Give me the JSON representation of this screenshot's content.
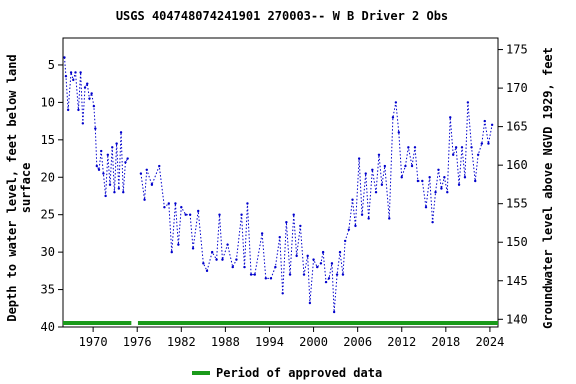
{
  "chart_data": {
    "type": "line",
    "title": "USGS 404748074241901 270003-- W B Driver 2 Obs",
    "ylabel": [
      "Depth to water level, feet below land",
      "surface"
    ],
    "y2label": "Groundwater level above NGVD 1929, feet",
    "xlim": [
      1965.9,
      2025.1
    ],
    "xticks": [
      1970,
      1976,
      1982,
      1988,
      1994,
      2000,
      2006,
      2012,
      2018,
      2024
    ],
    "ylim": [
      40,
      1.4
    ],
    "yticks": [
      5,
      10,
      15,
      20,
      25,
      30,
      35,
      40
    ],
    "y2lim": [
      139,
      176.5
    ],
    "y2ticks": [
      140,
      145,
      150,
      155,
      160,
      165,
      170,
      175
    ],
    "x": [
      1966.1,
      1966.3,
      1966.6,
      1967,
      1967.3,
      1967.6,
      1968,
      1968.3,
      1968.6,
      1968.9,
      1969.2,
      1969.5,
      1969.8,
      1970.1,
      1970.3,
      1970.5,
      1970.8,
      1971.1,
      1971.4,
      1971.7,
      1972,
      1972.3,
      1972.6,
      1972.9,
      1973.2,
      1973.5,
      1973.8,
      1974.1,
      1974.4,
      1974.7,
      1975.5,
      1976.5,
      1977,
      1977.3,
      1978,
      1979,
      1979.7,
      1980.3,
      1980.7,
      1981.2,
      1981.6,
      1982,
      1982.6,
      1983.2,
      1983.6,
      1984.3,
      1985,
      1985.5,
      1986.2,
      1986.8,
      1987.2,
      1987.6,
      1988.3,
      1989,
      1989.5,
      1990.2,
      1990.6,
      1991,
      1991.5,
      1992,
      1993,
      1993.5,
      1994.2,
      1994.8,
      1995.4,
      1995.8,
      1996.3,
      1996.8,
      1997.3,
      1997.7,
      1998.2,
      1998.7,
      1999.2,
      1999.5,
      2000,
      2000.5,
      2001,
      2001.3,
      2001.7,
      2002.1,
      2002.5,
      2002.8,
      2003.2,
      2003.6,
      2004,
      2004.3,
      2004.8,
      2005.3,
      2005.7,
      2006.2,
      2006.6,
      2007.1,
      2007.5,
      2008,
      2008.5,
      2008.9,
      2009.3,
      2009.7,
      2010.3,
      2010.8,
      2011.2,
      2011.6,
      2012,
      2012.5,
      2012.9,
      2013.4,
      2013.8,
      2014.2,
      2014.8,
      2015.3,
      2015.8,
      2016.2,
      2016.6,
      2017,
      2017.4,
      2017.8,
      2018.2,
      2018.6,
      2019,
      2019.4,
      2019.8,
      2020.2,
      2020.6,
      2021,
      2021.5,
      2022,
      2022.4,
      2022.9,
      2023.3,
      2023.8,
      2024.3
    ],
    "series": [
      {
        "color": "#0000cc",
        "values": [
          4,
          6.5,
          11,
          6,
          7,
          6,
          11,
          6,
          12.8,
          8,
          7.5,
          9.5,
          8.8,
          10.5,
          13.5,
          18.5,
          19,
          16.5,
          19.5,
          22.5,
          17,
          21,
          16,
          22,
          15.5,
          21.5,
          14,
          22,
          18,
          17.5,
          null,
          19.5,
          23,
          19,
          21,
          18.5,
          24,
          23.5,
          30,
          23.5,
          29,
          24,
          25,
          25,
          29.5,
          24.5,
          31.5,
          32.5,
          30,
          31,
          25,
          31,
          29,
          32,
          31,
          25,
          32,
          23.5,
          33,
          33,
          27.5,
          33.5,
          33.5,
          32,
          28,
          35.5,
          26,
          33,
          25,
          30.5,
          26.5,
          33,
          30.5,
          36.8,
          31,
          32,
          31.5,
          30,
          34,
          33.5,
          31.5,
          38,
          33,
          30,
          33,
          28.5,
          27,
          23,
          26.5,
          17.5,
          25,
          19.5,
          25.5,
          19,
          22,
          17,
          21,
          18.5,
          25.5,
          12,
          10,
          14,
          20,
          18.5,
          16,
          18.5,
          16,
          20.5,
          20.5,
          24,
          20,
          26,
          22,
          19,
          21.5,
          20,
          22,
          12,
          17,
          16,
          21,
          16,
          20,
          10,
          16,
          20.5,
          17,
          15.5,
          12.5,
          15.5,
          13
        ]
      }
    ],
    "approved": {
      "name": "Period of approved data",
      "color": "#1a9a1a",
      "ranges": [
        [
          1965.9,
          1975.2
        ],
        [
          1976.1,
          2025.1
        ]
      ]
    }
  }
}
